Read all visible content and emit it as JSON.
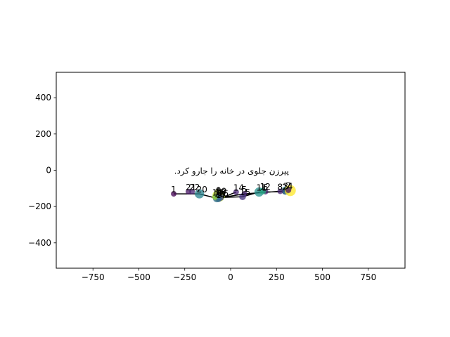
{
  "chart_data": {
    "type": "scatter",
    "title": "",
    "xlabel": "",
    "ylabel": "",
    "xlim": [
      -950,
      950
    ],
    "ylim": [
      -540,
      540
    ],
    "grid": false,
    "xticks": [
      -750,
      -500,
      -250,
      0,
      250,
      500,
      750
    ],
    "xtick_labels": [
      "−750",
      "−500",
      "−250",
      "0",
      "250",
      "500",
      "750"
    ],
    "yticks": [
      -400,
      -200,
      0,
      200,
      400
    ],
    "ytick_labels": [
      "−400",
      "−200",
      "0",
      "200",
      "400"
    ],
    "annotation": {
      "text": "پیرزن جلوی در خانه را جارو کرد.",
      "x": 5,
      "y": -20
    },
    "colormap": "viridis",
    "points": [
      {
        "label": "1",
        "x": -310,
        "y": -130,
        "size": 40,
        "c": 0.0
      },
      {
        "label": "2",
        "x": 295,
        "y": -118,
        "size": 40,
        "c": 0.05
      },
      {
        "label": "3",
        "x": 300,
        "y": -112,
        "size": 90,
        "c": 0.4
      },
      {
        "label": "4",
        "x": 325,
        "y": -112,
        "size": 160,
        "c": 1.0
      },
      {
        "label": "5",
        "x": 75,
        "y": -130,
        "size": 40,
        "c": 0.1
      },
      {
        "label": "6",
        "x": 190,
        "y": -118,
        "size": 40,
        "c": 0.08
      },
      {
        "label": "7",
        "x": 315,
        "y": -110,
        "size": 40,
        "c": 0.05
      },
      {
        "label": "8",
        "x": 270,
        "y": -116,
        "size": 40,
        "c": 0.1
      },
      {
        "label": "9",
        "x": -65,
        "y": -136,
        "size": 40,
        "c": 0.12
      },
      {
        "label": "10",
        "x": -65,
        "y": -140,
        "size": 200,
        "c": 0.9
      },
      {
        "label": "11",
        "x": 155,
        "y": -120,
        "size": 110,
        "c": 0.5
      },
      {
        "label": "12",
        "x": 175,
        "y": -115,
        "size": 60,
        "c": 0.6
      },
      {
        "label": "13",
        "x": -70,
        "y": -145,
        "size": 40,
        "c": 0.3
      },
      {
        "label": "14",
        "x": 30,
        "y": -120,
        "size": 40,
        "c": 0.1
      },
      {
        "label": "15",
        "x": 65,
        "y": -146,
        "size": 60,
        "c": 0.15
      },
      {
        "label": "16",
        "x": -55,
        "y": -150,
        "size": 60,
        "c": 0.2
      },
      {
        "label": "17",
        "x": -65,
        "y": -160,
        "size": 40,
        "c": 0.3
      },
      {
        "label": "18",
        "x": -75,
        "y": -155,
        "size": 80,
        "c": 0.35
      },
      {
        "label": "19",
        "x": -85,
        "y": -148,
        "size": 40,
        "c": 0.85
      },
      {
        "label": "20",
        "x": -170,
        "y": -130,
        "size": 110,
        "c": 0.45
      },
      {
        "label": "21",
        "x": -230,
        "y": -118,
        "size": 40,
        "c": 0.05
      },
      {
        "label": "22",
        "x": -210,
        "y": -118,
        "size": 40,
        "c": 0.1
      }
    ],
    "path_order": [
      "1",
      "20",
      "18",
      "5",
      "4",
      "3",
      "2",
      "11",
      "15",
      "16",
      "13",
      "17",
      "14"
    ]
  }
}
